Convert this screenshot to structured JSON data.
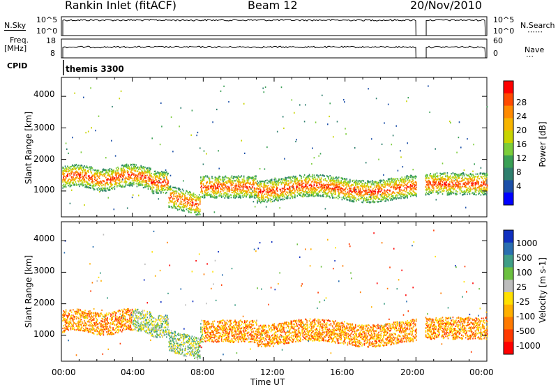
{
  "header": {
    "title": "Rankin Inlet (fitACF)",
    "beam": "Beam 12",
    "date": "20/Nov/2010"
  },
  "left_labels": {
    "nsky": "N.Sky",
    "freq": "Freq.",
    "freq_unit": "[MHz]",
    "cpid": "CPID"
  },
  "right_labels": {
    "nsearch": "N.Search",
    "nave": "Nave"
  },
  "cpid_text": "themis 3300",
  "chart_data": [
    {
      "type": "line",
      "name": "noise-panel",
      "left_ticks": [
        "10^5",
        "10^0"
      ],
      "right_ticks": [
        "10^5",
        "10^0"
      ],
      "gap_hours": [
        20.0,
        20.5
      ],
      "level": 0.82
    },
    {
      "type": "line",
      "name": "freq-panel",
      "left_ticks": [
        "18",
        "8"
      ],
      "right_ticks": [
        "60",
        "0"
      ],
      "gap_hours": [
        20.0,
        20.5
      ],
      "level_freq_mhz": 11.5
    },
    {
      "type": "heatmap",
      "name": "power-panel",
      "ylabel": "Slant Range [km]",
      "ylim": [
        180,
        4600
      ],
      "yticks": [
        "1000",
        "2000",
        "3000",
        "4000"
      ],
      "xlim_hours": [
        0,
        24
      ],
      "colorbar": {
        "label": "Power [dB]",
        "ticks": [
          "28",
          "24",
          "20",
          "16",
          "12",
          "8",
          "4"
        ],
        "colors": [
          "#ff0000",
          "#ff4a00",
          "#ff8a00",
          "#f7b500",
          "#c8d400",
          "#7ccd3a",
          "#3aa055",
          "#2f7f6e",
          "#1c4fa8",
          "#0000ff"
        ]
      }
    },
    {
      "type": "heatmap",
      "name": "velocity-panel",
      "ylabel": "Slant Range [km]",
      "ylim": [
        180,
        4600
      ],
      "yticks": [
        "1000",
        "2000",
        "3000",
        "4000"
      ],
      "xlim_hours": [
        0,
        24
      ],
      "colorbar": {
        "label": "Velocity [m s-1]",
        "ticks": [
          "1000",
          "500",
          "100",
          "25",
          "-25",
          "-100",
          "-500",
          "-1000"
        ],
        "colors": [
          "#1030c0",
          "#2a6fb0",
          "#3f9e86",
          "#6cc040",
          "#bdbdbd",
          "#ffe000",
          "#ffb000",
          "#ff7a00",
          "#ff3a00",
          "#ff0000"
        ]
      }
    }
  ],
  "xaxis": {
    "ticks": [
      "00:00",
      "04:00",
      "08:00",
      "12:00",
      "16:00",
      "20:00",
      "00:00"
    ],
    "label": "Time UT"
  }
}
